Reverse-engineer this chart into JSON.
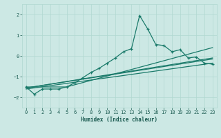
{
  "xlabel": "Humidex (Indice chaleur)",
  "bg_color": "#cce8e4",
  "grid_color": "#b0d8d0",
  "line_color": "#1a7a6a",
  "xlim": [
    -0.5,
    23.5
  ],
  "ylim": [
    -2.5,
    2.5
  ],
  "yticks": [
    -2,
    -1,
    0,
    1,
    2
  ],
  "xticks": [
    0,
    1,
    2,
    3,
    4,
    5,
    6,
    7,
    8,
    9,
    10,
    11,
    12,
    13,
    14,
    15,
    16,
    17,
    18,
    19,
    20,
    21,
    22,
    23
  ],
  "line1_x": [
    0,
    1,
    2,
    3,
    4,
    5,
    6,
    7,
    8,
    9,
    10,
    11,
    12,
    13,
    14,
    15,
    16,
    17,
    18,
    19,
    20,
    21,
    22,
    23
  ],
  "line1_y": [
    -1.5,
    -1.85,
    -1.6,
    -1.6,
    -1.6,
    -1.5,
    -1.3,
    -1.05,
    -0.8,
    -0.6,
    -0.35,
    -0.1,
    0.2,
    0.35,
    1.95,
    1.3,
    0.55,
    0.5,
    0.2,
    0.3,
    -0.1,
    -0.05,
    -0.35,
    -0.4
  ],
  "line2_x": [
    0,
    23
  ],
  "line2_y": [
    -1.6,
    -0.35
  ],
  "line3_x": [
    0,
    23
  ],
  "line3_y": [
    -1.55,
    -0.15
  ],
  "line4_x": [
    0,
    23
  ],
  "line4_y": [
    -1.55,
    -0.1
  ],
  "line5_x": [
    0,
    5,
    23
  ],
  "line5_y": [
    -1.5,
    -1.5,
    0.4
  ]
}
